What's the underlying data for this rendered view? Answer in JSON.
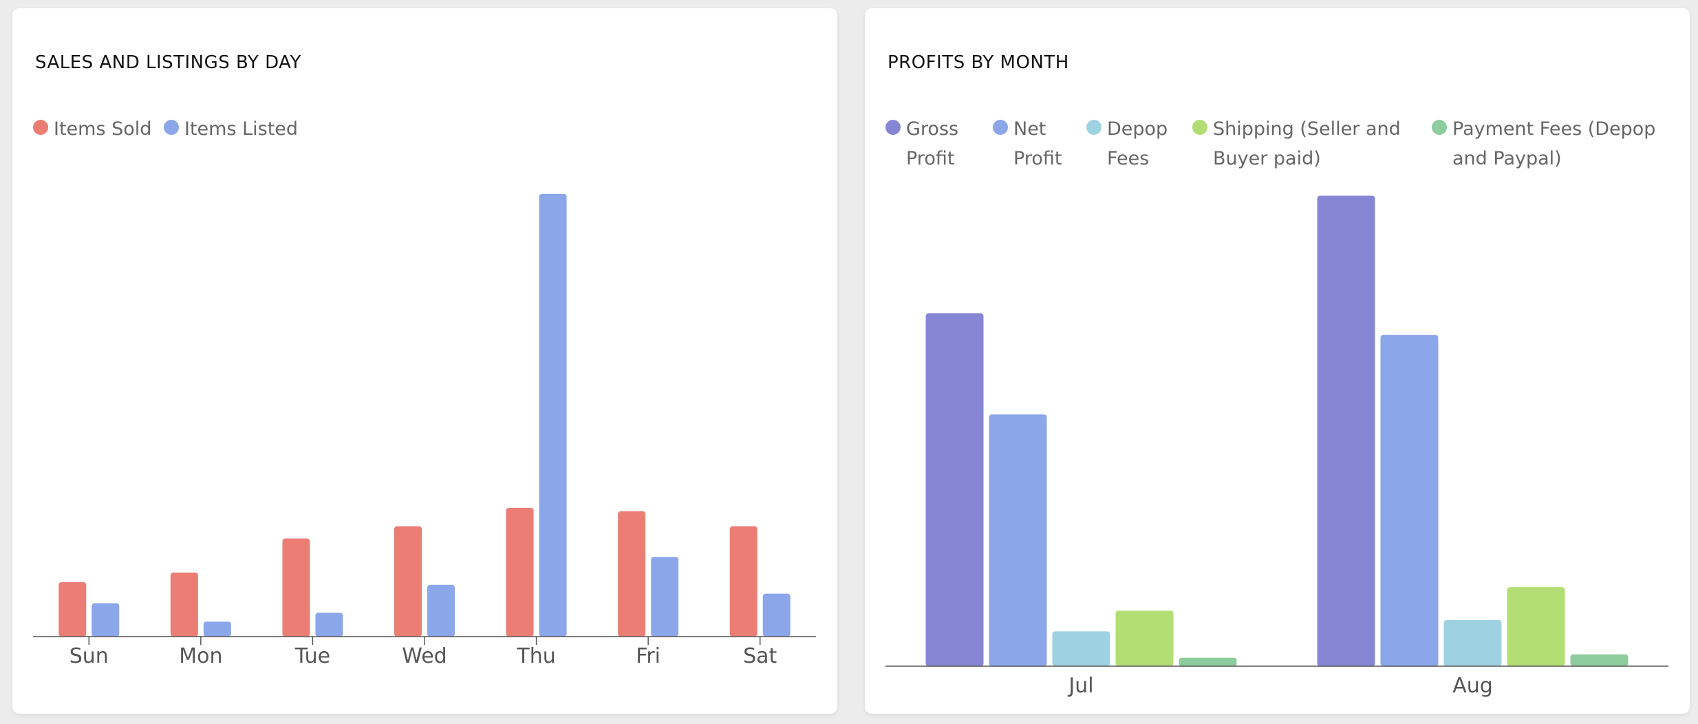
{
  "panels": [
    {
      "title": "SALES AND LISTINGS BY DAY",
      "legend": [
        {
          "label": "Items Sold",
          "color": "#eb7d74"
        },
        {
          "label": "Items Listed",
          "color": "#8ba6e9"
        }
      ]
    },
    {
      "title": "PROFITS BY MONTH",
      "legend": [
        {
          "label": "Gross Profit",
          "color": "#8786d4"
        },
        {
          "label": "Net Profit",
          "color": "#8ba6e9"
        },
        {
          "label": "Depop Fees",
          "color": "#9fd2e0"
        },
        {
          "label": "Shipping (Seller and Buyer paid)",
          "color": "#b3de74"
        },
        {
          "label": "Payment Fees (Depop and Paypal)",
          "color": "#8dcc9c"
        }
      ]
    }
  ],
  "chart_data": [
    {
      "type": "bar",
      "title": "SALES AND LISTINGS BY DAY",
      "categories": [
        "Sun",
        "Mon",
        "Tue",
        "Wed",
        "Thu",
        "Fri",
        "Sat"
      ],
      "series": [
        {
          "name": "Items Sold",
          "color": "#eb7d74",
          "values": [
            8,
            9.4,
            14.4,
            16.2,
            18.9,
            18.4,
            16.2
          ]
        },
        {
          "name": "Items Listed",
          "color": "#8ba6e9",
          "values": [
            4.9,
            2.2,
            3.5,
            7.6,
            65,
            11.7,
            6.3
          ]
        }
      ],
      "ylim": [
        0,
        68
      ],
      "grid": false,
      "legend_position": "top-left"
    },
    {
      "type": "bar",
      "title": "PROFITS BY MONTH",
      "categories": [
        "Jul",
        "Aug"
      ],
      "series": [
        {
          "name": "Gross Profit",
          "color": "#8786d4",
          "values": [
            75,
            100
          ]
        },
        {
          "name": "Net Profit",
          "color": "#8ba6e9",
          "values": [
            53.5,
            70.4
          ]
        },
        {
          "name": "Depop Fees",
          "color": "#9fd2e0",
          "values": [
            7.4,
            9.8
          ]
        },
        {
          "name": "Shipping (Seller and Buyer paid)",
          "color": "#b3de74",
          "values": [
            11.8,
            16.8
          ]
        },
        {
          "name": "Payment Fees (Depop and Paypal)",
          "color": "#8dcc9c",
          "values": [
            1.8,
            2.5
          ]
        }
      ],
      "ylim": [
        0,
        104
      ],
      "grid": false,
      "legend_position": "top-left"
    }
  ]
}
